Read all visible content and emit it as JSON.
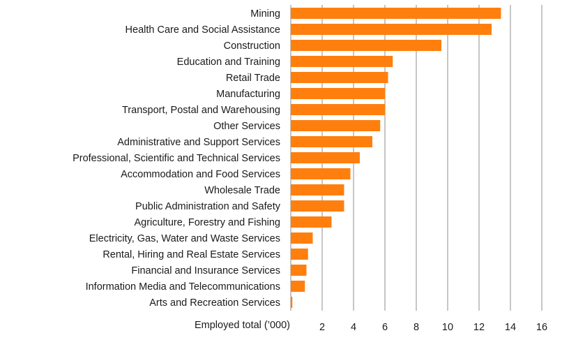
{
  "chart_data": {
    "type": "bar",
    "orientation": "horizontal",
    "title": "",
    "xlabel": "Employed total (’000)",
    "ylabel": "",
    "xlim": [
      0,
      16
    ],
    "xticks": [
      2,
      4,
      6,
      8,
      10,
      12,
      14,
      16
    ],
    "grid": "vertical",
    "legend": "none",
    "bar_color": "#ff7f0e",
    "categories": [
      "Mining",
      "Health Care and Social Assistance",
      "Construction",
      "Education and Training",
      "Retail Trade",
      "Manufacturing",
      "Transport, Postal and Warehousing",
      "Other Services",
      "Administrative and Support Services",
      "Professional, Scientific and Technical Services",
      "Accommodation and Food Services",
      "Wholesale Trade",
      "Public Administration and Safety",
      "Agriculture, Forestry and Fishing",
      "Electricity, Gas, Water and Waste Services",
      "Rental, Hiring and Real Estate Services",
      "Financial and Insurance Services",
      "Information Media and Telecommunications",
      "Arts and Recreation Services"
    ],
    "values": [
      13.4,
      12.8,
      9.6,
      6.5,
      6.2,
      6.0,
      6.0,
      5.7,
      5.2,
      4.4,
      3.8,
      3.4,
      3.4,
      2.6,
      1.4,
      1.1,
      1.0,
      0.9,
      0.1
    ]
  }
}
